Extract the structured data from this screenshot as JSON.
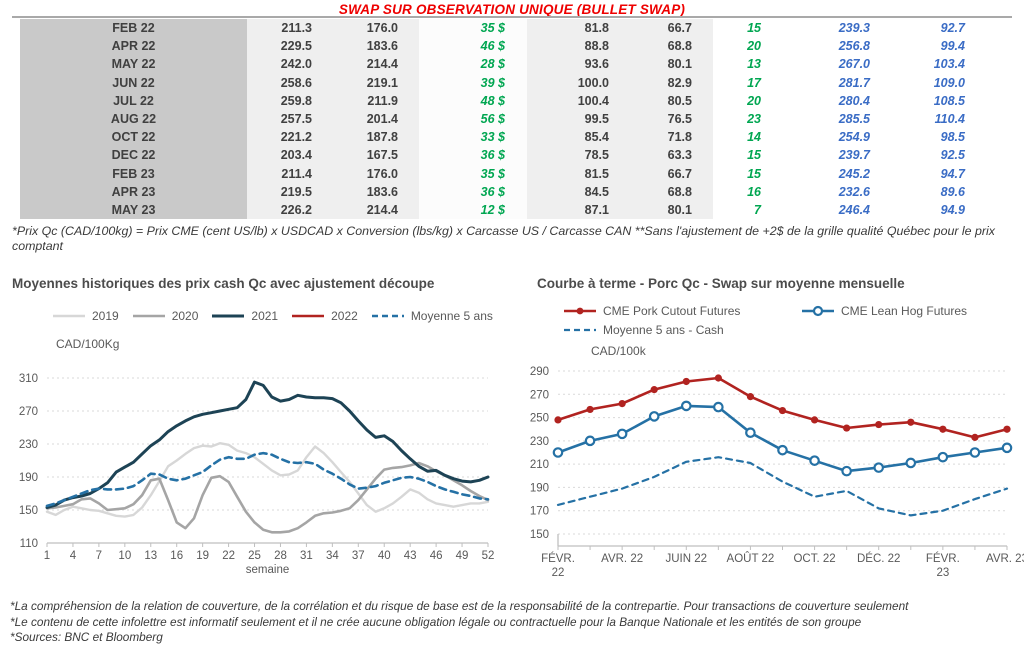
{
  "title": "SWAP SUR OBSERVATION UNIQUE (BULLET SWAP)",
  "table": {
    "rows": [
      [
        "FEB 22",
        "211.3",
        "176.0",
        "35 $",
        "81.8",
        "66.7",
        "15",
        "239.3",
        "92.7"
      ],
      [
        "APR 22",
        "229.5",
        "183.6",
        "46 $",
        "88.8",
        "68.8",
        "20",
        "256.8",
        "99.4"
      ],
      [
        "MAY 22",
        "242.0",
        "214.4",
        "28 $",
        "93.6",
        "80.1",
        "13",
        "267.0",
        "103.4"
      ],
      [
        "JUN 22",
        "258.6",
        "219.1",
        "39 $",
        "100.0",
        "82.9",
        "17",
        "281.7",
        "109.0"
      ],
      [
        "JUL 22",
        "259.8",
        "211.9",
        "48 $",
        "100.4",
        "80.5",
        "20",
        "280.4",
        "108.5"
      ],
      [
        "AUG 22",
        "257.5",
        "201.4",
        "56 $",
        "99.5",
        "76.5",
        "23",
        "285.5",
        "110.4"
      ],
      [
        "OCT 22",
        "221.2",
        "187.8",
        "33 $",
        "85.4",
        "71.8",
        "14",
        "254.9",
        "98.5"
      ],
      [
        "DEC 22",
        "203.4",
        "167.5",
        "36 $",
        "78.5",
        "63.3",
        "15",
        "239.7",
        "92.5"
      ],
      [
        "FEB 23",
        "211.4",
        "176.0",
        "35 $",
        "81.5",
        "66.7",
        "15",
        "245.2",
        "94.7"
      ],
      [
        "APR 23",
        "219.5",
        "183.6",
        "36 $",
        "84.5",
        "68.8",
        "16",
        "232.6",
        "89.6"
      ],
      [
        "MAY 23",
        "226.2",
        "214.4",
        "12 $",
        "87.1",
        "80.1",
        "7",
        "246.4",
        "94.9"
      ]
    ],
    "footnote": "*Prix Qc (CAD/100kg) = Prix CME (cent US/lb) x USDCAD x Conversion (lbs/kg) x Carcasse US / Carcasse CAN **Sans l'ajustement de +2$ de la grille qualité Québec pour le prix comptant"
  },
  "colors": {
    "title_red": "#ee0000",
    "table_green": "#00a651",
    "table_blue": "#3a6cc5",
    "month_band": "#c9c9c9",
    "value_band": "#efefef",
    "series_2019": "#d7d7d7",
    "series_2020": "#a5a5a5",
    "series_2021": "#1d4355",
    "series_red": "#b12320",
    "series_blue": "#2571a5",
    "gridline": "#d9d9d9",
    "axis": "#bfbfbf"
  },
  "chart_data": [
    {
      "type": "line",
      "title": "Moyennes historiques des prix cash Qc avec ajustement découpe",
      "ylabel": "CAD/100Kg",
      "xlabel": "semaine",
      "ylim": [
        110,
        310
      ],
      "yticks": [
        110,
        150,
        190,
        230,
        270,
        310
      ],
      "x": [
        1,
        2,
        3,
        4,
        5,
        6,
        7,
        8,
        9,
        10,
        11,
        12,
        13,
        14,
        15,
        16,
        17,
        18,
        19,
        20,
        21,
        22,
        23,
        24,
        25,
        26,
        27,
        28,
        29,
        30,
        31,
        32,
        33,
        34,
        35,
        36,
        37,
        38,
        39,
        40,
        41,
        42,
        43,
        44,
        45,
        46,
        47,
        48,
        49,
        50,
        51,
        52
      ],
      "xticks": [
        1,
        4,
        7,
        10,
        13,
        16,
        19,
        22,
        25,
        28,
        31,
        34,
        37,
        40,
        43,
        46,
        49,
        52
      ],
      "grid": true,
      "legend_position": "top",
      "series": [
        {
          "name": "2019",
          "color": "#d7d7d7",
          "width": 2.4,
          "values": [
            148,
            144,
            150,
            154,
            152,
            150,
            149,
            146,
            143,
            142,
            144,
            153,
            168,
            185,
            203,
            210,
            218,
            225,
            228,
            227,
            231,
            229,
            222,
            219,
            214,
            206,
            198,
            192,
            193,
            198,
            214,
            227,
            219,
            208,
            196,
            184,
            170,
            156,
            148,
            152,
            158,
            166,
            175,
            171,
            163,
            158,
            156,
            154,
            156,
            158,
            158,
            160
          ]
        },
        {
          "name": "2020",
          "color": "#a5a5a5",
          "width": 2.6,
          "values": [
            152,
            153,
            155,
            157,
            163,
            164,
            158,
            150,
            151,
            152,
            157,
            168,
            186,
            188,
            162,
            135,
            128,
            140,
            168,
            189,
            191,
            184,
            166,
            148,
            135,
            126,
            123,
            123,
            124,
            128,
            135,
            143,
            146,
            147,
            149,
            152,
            162,
            175,
            188,
            199,
            201,
            202,
            204,
            207,
            203,
            197,
            192,
            186,
            180,
            173,
            167,
            162
          ]
        },
        {
          "name": "2021",
          "color": "#1d4355",
          "width": 3,
          "values": [
            153,
            156,
            162,
            165,
            167,
            170,
            176,
            183,
            196,
            202,
            208,
            218,
            228,
            235,
            245,
            252,
            258,
            263,
            266,
            268,
            270,
            272,
            274,
            284,
            305,
            301,
            287,
            282,
            284,
            289,
            287,
            286,
            286,
            285,
            280,
            270,
            258,
            247,
            238,
            240,
            233,
            222,
            212,
            203,
            197,
            198,
            192,
            188,
            185,
            184,
            186,
            190
          ]
        },
        {
          "name": "2022",
          "color": "#b12320",
          "width": 2.6,
          "values": []
        },
        {
          "name": "Moyenne 5 ans",
          "color": "#2571a5",
          "width": 2.6,
          "dash": "7 5",
          "values": [
            155,
            158,
            162,
            166,
            170,
            174,
            176,
            175,
            175,
            176,
            179,
            186,
            194,
            193,
            188,
            186,
            188,
            192,
            196,
            204,
            211,
            214,
            212,
            212,
            217,
            219,
            217,
            212,
            208,
            207,
            208,
            206,
            199,
            194,
            188,
            181,
            176,
            177,
            179,
            183,
            186,
            189,
            190,
            188,
            184,
            179,
            175,
            172,
            169,
            167,
            164,
            163
          ]
        }
      ]
    },
    {
      "type": "line",
      "title": "Courbe à terme - Porc Qc - Swap sur moyenne mensuelle",
      "ylabel": "CAD/100k",
      "xlabel": "",
      "ylim": [
        150,
        290
      ],
      "yticks": [
        150,
        170,
        190,
        210,
        230,
        250,
        270,
        290
      ],
      "categories": [
        "FÉVR.\n22",
        "",
        "AVR. 22",
        "",
        "JUIN 22",
        "",
        "AOÛT 22",
        "",
        "OCT. 22",
        "",
        "DÉC. 22",
        "",
        "FÉVR.\n23",
        "",
        "AVR. 23"
      ],
      "grid": true,
      "legend_position": "top",
      "series": [
        {
          "name": "CME Pork Cutout Futures",
          "color": "#b12320",
          "width": 2.6,
          "marker": "dot",
          "values": [
            248,
            257,
            262,
            274,
            281,
            284,
            268,
            256,
            248,
            241,
            244,
            246,
            240,
            233,
            240
          ]
        },
        {
          "name": "CME Lean Hog Futures",
          "color": "#2571a5",
          "width": 2.6,
          "marker": "circle",
          "values": [
            220,
            230,
            236,
            251,
            260,
            259,
            237,
            222,
            213,
            204,
            207,
            211,
            216,
            220,
            224
          ]
        },
        {
          "name": "Moyenne 5 ans - Cash",
          "color": "#2571a5",
          "width": 2.2,
          "dash": "6 5",
          "values": [
            175,
            182,
            189,
            199,
            212,
            216,
            211,
            195,
            182,
            187,
            172,
            166,
            170,
            180,
            189
          ]
        }
      ]
    }
  ],
  "footer": {
    "lines": [
      "*La compréhension de la relation de couverture, de la corrélation et du risque de base est de la responsabilité de la contrepartie. Pour transactions de couverture seulement",
      "*Le contenu de cette infolettre est informatif seulement et il ne crée aucune obligation légale ou contractuelle pour la Banque Nationale et les entités de son groupe",
      "*Sources: BNC et Bloomberg"
    ]
  }
}
